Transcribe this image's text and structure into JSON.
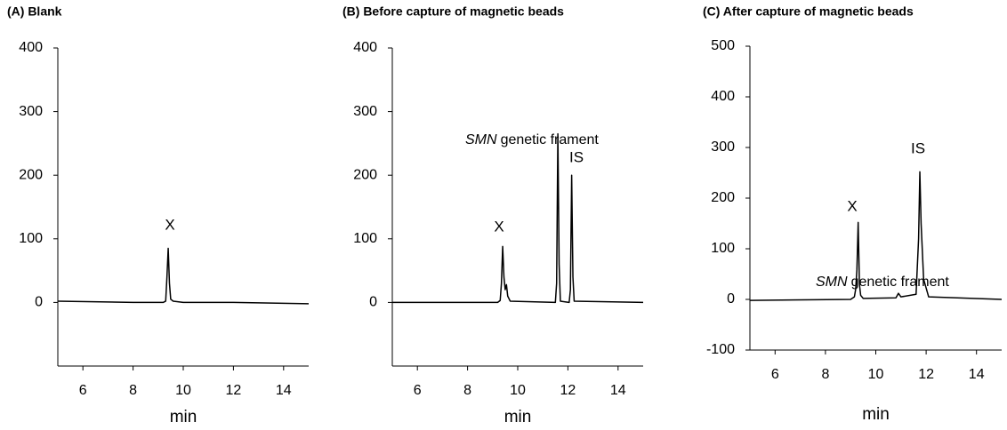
{
  "chart_data": [
    {
      "type": "line",
      "title": "(A) Blank",
      "xlabel": "min",
      "x": [
        5,
        8,
        9.2,
        9.3,
        9.35,
        9.4,
        9.45,
        9.5,
        9.6,
        10,
        12,
        15
      ],
      "series": [
        {
          "color": "#000000",
          "values": [
            2,
            0,
            0,
            2,
            40,
            85,
            30,
            5,
            2,
            0,
            0,
            -2
          ]
        }
      ],
      "xlim": [
        5,
        15
      ],
      "xticks": [
        6,
        8,
        10,
        12,
        14
      ],
      "ylim": [
        -100,
        400
      ],
      "yticks": [
        0,
        100,
        200,
        300,
        400
      ],
      "annotations": [
        "X"
      ]
    },
    {
      "type": "line",
      "title": "(B) Before capture of magnetic beads",
      "xlabel": "min",
      "x": [
        5,
        9.2,
        9.3,
        9.35,
        9.4,
        9.45,
        9.5,
        9.55,
        9.6,
        9.7,
        11.5,
        11.55,
        11.6,
        11.65,
        11.7,
        12.05,
        12.1,
        12.15,
        12.2,
        12.25,
        15
      ],
      "series": [
        {
          "color": "#000000",
          "values": [
            0,
            0,
            3,
            30,
            88,
            40,
            20,
            28,
            10,
            2,
            0,
            30,
            265,
            60,
            2,
            0,
            20,
            200,
            40,
            2,
            0
          ]
        }
      ],
      "xlim": [
        5,
        15
      ],
      "xticks": [
        6,
        8,
        10,
        12,
        14
      ],
      "ylim": [
        -100,
        400
      ],
      "yticks": [
        0,
        100,
        200,
        300,
        400
      ],
      "annotations": [
        "X",
        [
          "SMN",
          "genetic frament"
        ],
        "IS"
      ]
    },
    {
      "type": "line",
      "title": "(C) After capture of magnetic beads",
      "xlabel": "min",
      "x": [
        5,
        9.0,
        9.15,
        9.2,
        9.25,
        9.3,
        9.35,
        9.4,
        9.5,
        10.8,
        10.9,
        11.0,
        11.6,
        11.7,
        11.75,
        11.8,
        11.9,
        12.1,
        15
      ],
      "series": [
        {
          "color": "#000000",
          "values": [
            -2,
            0,
            5,
            20,
            58,
            152,
            30,
            8,
            2,
            3,
            12,
            5,
            10,
            120,
            252,
            150,
            40,
            5,
            0
          ]
        }
      ],
      "xlim": [
        5,
        15
      ],
      "xticks": [
        6,
        8,
        10,
        12,
        14
      ],
      "ylim": [
        -100,
        500
      ],
      "yticks": [
        -100,
        0,
        100,
        200,
        300,
        400,
        500
      ],
      "annotations": [
        "X",
        [
          "SMN",
          "genetic frament"
        ],
        "IS"
      ]
    }
  ]
}
